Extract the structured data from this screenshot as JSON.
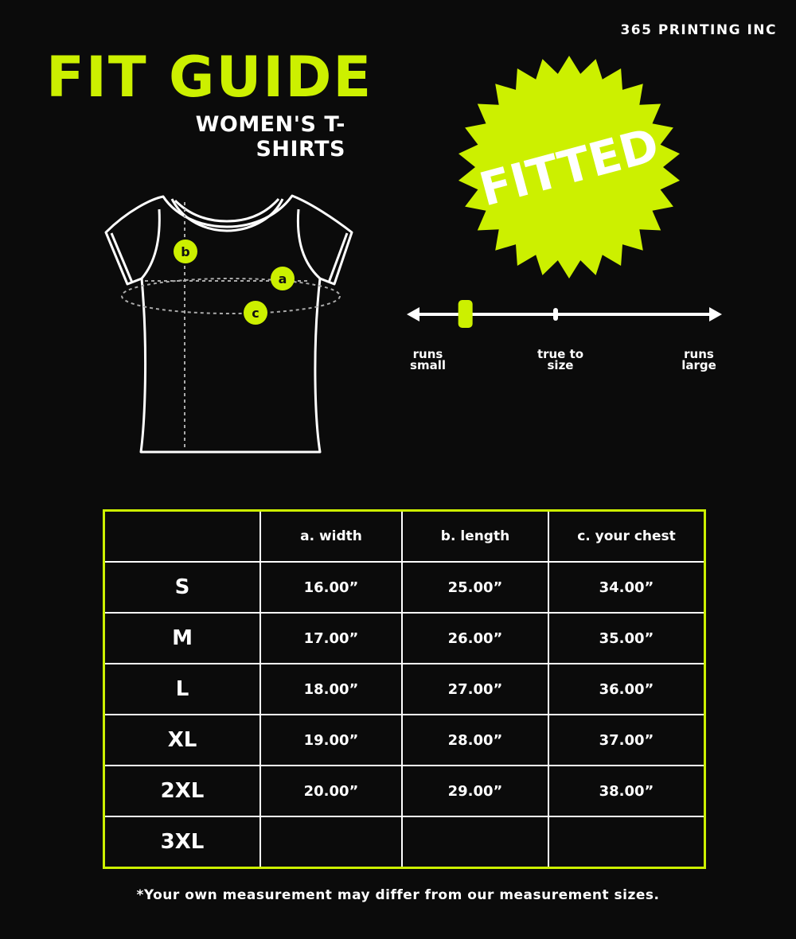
{
  "brand": "365 PRINTING INC",
  "title": "FIT GUIDE",
  "subtitle": "WOMEN'S T-SHIRTS",
  "colors": {
    "accent": "#ccf000",
    "background": "#0b0b0b",
    "text": "#ffffff"
  },
  "diagram": {
    "labels": {
      "a": "a",
      "b": "b",
      "c": "c"
    }
  },
  "badge": {
    "label": "FITTED"
  },
  "fit_scale": {
    "left_label": "runs small",
    "middle_label": "true to size",
    "right_label": "runs large",
    "marker_position": 0.18
  },
  "table": {
    "headers": [
      "",
      "a. width",
      "b. length",
      "c. your chest"
    ],
    "rows": [
      [
        "S",
        "16.00”",
        "25.00”",
        "34.00”"
      ],
      [
        "M",
        "17.00”",
        "26.00”",
        "35.00”"
      ],
      [
        "L",
        "18.00”",
        "27.00”",
        "36.00”"
      ],
      [
        "XL",
        "19.00”",
        "28.00”",
        "37.00”"
      ],
      [
        "2XL",
        "20.00”",
        "29.00”",
        "38.00”"
      ],
      [
        "3XL",
        "",
        "",
        ""
      ]
    ]
  },
  "footnote": "*Your own measurement may differ from our measurement sizes."
}
